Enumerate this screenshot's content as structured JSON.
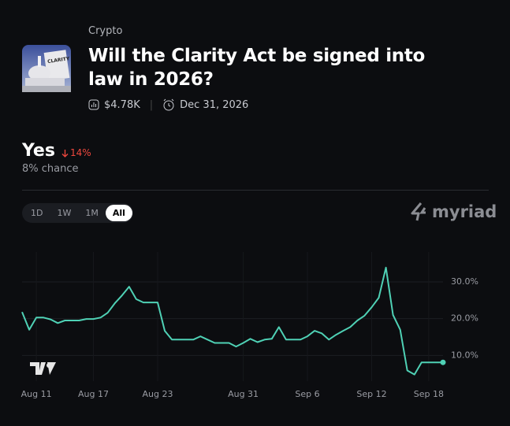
{
  "header": {
    "category": "Crypto",
    "title": "Will the Clarity Act be signed into law in 2026?",
    "volume": "$4.78K",
    "end_date": "Dec 31, 2026"
  },
  "outcome": {
    "name": "Yes",
    "change": "14%",
    "chance": "8% chance"
  },
  "ranges": [
    "1D",
    "1W",
    "1M",
    "All"
  ],
  "brand": "myriad",
  "chart_data": {
    "type": "line",
    "color": "#4fd1b5",
    "categories": [
      null,
      null,
      "Aug 11",
      null,
      null,
      null,
      null,
      null,
      null,
      null,
      "Aug 17",
      null,
      null,
      null,
      null,
      null,
      null,
      null,
      null,
      "Aug 23",
      null,
      null,
      null,
      null,
      null,
      null,
      null,
      null,
      null,
      null,
      null,
      "Aug 31",
      null,
      null,
      null,
      null,
      null,
      null,
      null,
      null,
      "Sep 6",
      null,
      null,
      null,
      null,
      null,
      null,
      null,
      null,
      "Sep 12",
      null,
      null,
      null,
      null,
      null,
      null,
      null,
      "Sep 18",
      null,
      null
    ],
    "values": [
      21.8,
      17.0,
      20.3,
      20.3,
      19.8,
      18.8,
      19.5,
      19.5,
      19.5,
      19.9,
      19.9,
      20.3,
      21.6,
      24.2,
      26.3,
      28.7,
      25.3,
      24.4,
      24.4,
      24.4,
      16.7,
      14.3,
      14.3,
      14.3,
      14.3,
      15.2,
      14.3,
      13.4,
      13.4,
      13.4,
      12.4,
      13.4,
      14.5,
      13.6,
      14.3,
      14.5,
      17.7,
      14.3,
      14.3,
      14.3,
      15.2,
      16.7,
      16.0,
      14.3,
      15.6,
      16.7,
      17.7,
      19.5,
      20.8,
      23.1,
      25.7,
      33.9,
      21.0,
      17.0,
      5.9,
      4.8,
      8.1,
      8.1,
      8.1,
      8.1
    ],
    "ylim": [
      3,
      36
    ],
    "yticks": [
      {
        "value": 10,
        "label": "10.0%"
      },
      {
        "value": 20,
        "label": "20.0%"
      },
      {
        "value": 30,
        "label": "30.0%"
      }
    ],
    "grid": true
  }
}
